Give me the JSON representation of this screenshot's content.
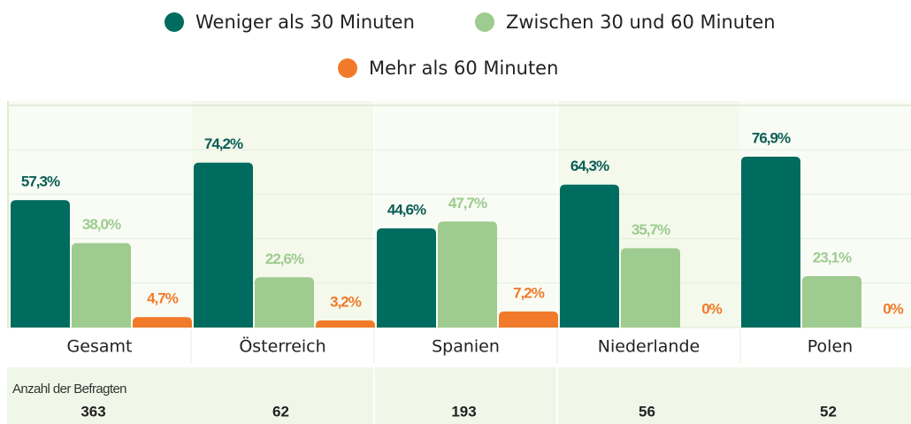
{
  "chart_data": {
    "type": "bar",
    "categories": [
      "Gesamt",
      "Österreich",
      "Spanien",
      "Niederlande",
      "Polen"
    ],
    "series": [
      {
        "name": "Weniger als 30 Minuten",
        "color": "#006b5f",
        "values": [
          57.3,
          74.2,
          44.6,
          64.3,
          76.9
        ],
        "value_labels": [
          "57,3%",
          "74,2%",
          "44,6%",
          "64,3%",
          "76,9%"
        ]
      },
      {
        "name": "Zwischen 30 und 60 Minuten",
        "color": "#9ecb8f",
        "values": [
          38.0,
          22.6,
          47.7,
          35.7,
          23.1
        ],
        "value_labels": [
          "38,0%",
          "22,6%",
          "47,7%",
          "35,7%",
          "23,1%"
        ]
      },
      {
        "name": "Mehr als 60 Minuten",
        "color": "#f07a2a",
        "values": [
          4.7,
          3.2,
          7.2,
          0,
          0
        ],
        "value_labels": [
          "4,7%",
          "3,2%",
          "7,2%",
          "0%",
          "0%"
        ]
      }
    ],
    "ylim": [
      0,
      100
    ],
    "yticks": [
      0,
      20,
      40,
      60,
      80,
      100
    ],
    "grid": true,
    "sample_label": "Anzahl der Befragten",
    "sample_sizes": [
      363,
      62,
      193,
      56,
      52
    ]
  }
}
